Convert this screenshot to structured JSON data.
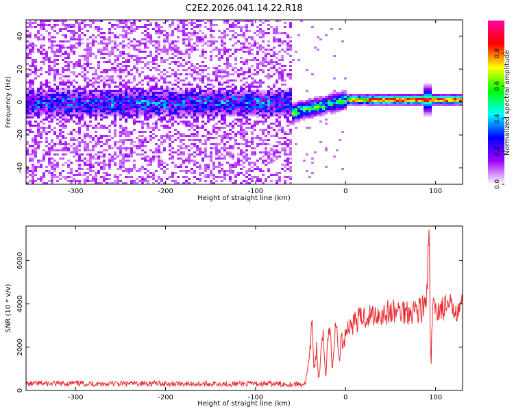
{
  "title": "C2E2.2026.041.14.22.R18",
  "chart_data": [
    {
      "type": "heatmap",
      "xlabel": "Height of straight line (km)",
      "ylabel": "Frequency (Hz)",
      "xlim": [
        -355,
        130
      ],
      "ylim": [
        -50,
        50
      ],
      "xticks": [
        -300,
        -200,
        -100,
        0,
        100
      ],
      "yticks": [
        -40,
        -20,
        0,
        20,
        40
      ],
      "grid": false,
      "colorbar": {
        "label": "Normalized spectral amplitude",
        "range": [
          0.0,
          1.0
        ],
        "ticks": [
          0.0,
          0.2,
          0.4,
          0.6,
          0.8
        ],
        "colormap": [
          "#ffffff",
          "#a000ff",
          "#0000ff",
          "#00ffff",
          "#00ff00",
          "#ffff00",
          "#ff0000",
          "#ff00a0"
        ]
      },
      "regions": [
        {
          "x_range": [
            -355,
            -62
          ],
          "description_value_range": [
            0.05,
            0.35
          ],
          "centre_frequency": 0
        },
        {
          "x_range": [
            -62,
            0
          ],
          "description_value_range": [
            0.2,
            0.7
          ],
          "centre_frequency": 0
        },
        {
          "x_range": [
            0,
            130
          ],
          "description_value_range": [
            0.4,
            1.0
          ],
          "centre_frequency": 2
        }
      ]
    },
    {
      "type": "line",
      "xlabel": "Height of straight line (km)",
      "ylabel": "SNR (10 * v/v)",
      "xlim": [
        -355,
        130
      ],
      "ylim": [
        0,
        7600
      ],
      "xticks": [
        -300,
        -200,
        -100,
        0,
        100
      ],
      "yticks": [
        0,
        2000,
        4000,
        6000
      ],
      "grid": false,
      "color": "#e8282d",
      "series": [
        {
          "x": [
            -355,
            -340,
            -320,
            -300,
            -280,
            -260,
            -240,
            -220,
            -200,
            -180,
            -160,
            -140,
            -120,
            -100,
            -80,
            -60,
            -45,
            -40,
            -37,
            -35,
            -32,
            -30,
            -27,
            -25,
            -22,
            -20,
            -17,
            -15,
            -12,
            -10,
            -7,
            -5,
            -2,
            0,
            5,
            10,
            20,
            30,
            40,
            50,
            60,
            70,
            80,
            88,
            90,
            92,
            93,
            94,
            95,
            96,
            97,
            100,
            110,
            120,
            130
          ],
          "y": [
            300,
            320,
            310,
            330,
            300,
            320,
            310,
            330,
            320,
            310,
            300,
            320,
            300,
            310,
            300,
            290,
            300,
            1500,
            3200,
            900,
            2000,
            400,
            1800,
            2500,
            600,
            2400,
            2900,
            900,
            2600,
            3000,
            1300,
            2400,
            2100,
            2800,
            3000,
            3200,
            3400,
            3500,
            3550,
            3600,
            3650,
            3700,
            3750,
            3800,
            4200,
            6500,
            7600,
            2000,
            1100,
            3200,
            3700,
            3750,
            3800,
            3850,
            3900
          ]
        }
      ]
    }
  ]
}
